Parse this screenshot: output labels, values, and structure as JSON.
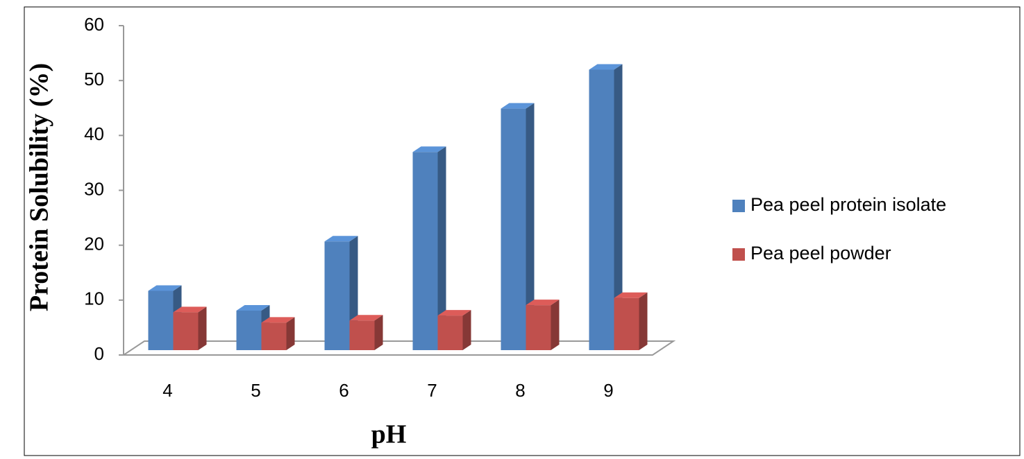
{
  "chart_data": {
    "type": "bar3d",
    "x_label": "pH",
    "y_label": "Protein Solubility (%)",
    "categories": [
      "4",
      "5",
      "6",
      "7",
      "8",
      "9"
    ],
    "series": [
      {
        "name": "Pea peel protein isolate",
        "color": "#4f81bd",
        "values": [
          10.8,
          7.2,
          19.8,
          36.1,
          44,
          51.1
        ]
      },
      {
        "name": "Pea peel powder",
        "color": "#c0504d",
        "values": [
          6.9,
          5,
          5.4,
          6.3,
          8.2,
          9.5
        ]
      }
    ],
    "ylim": [
      0,
      60
    ],
    "yticks": [
      0,
      10,
      20,
      30,
      40,
      50,
      60
    ],
    "legend": "right"
  }
}
